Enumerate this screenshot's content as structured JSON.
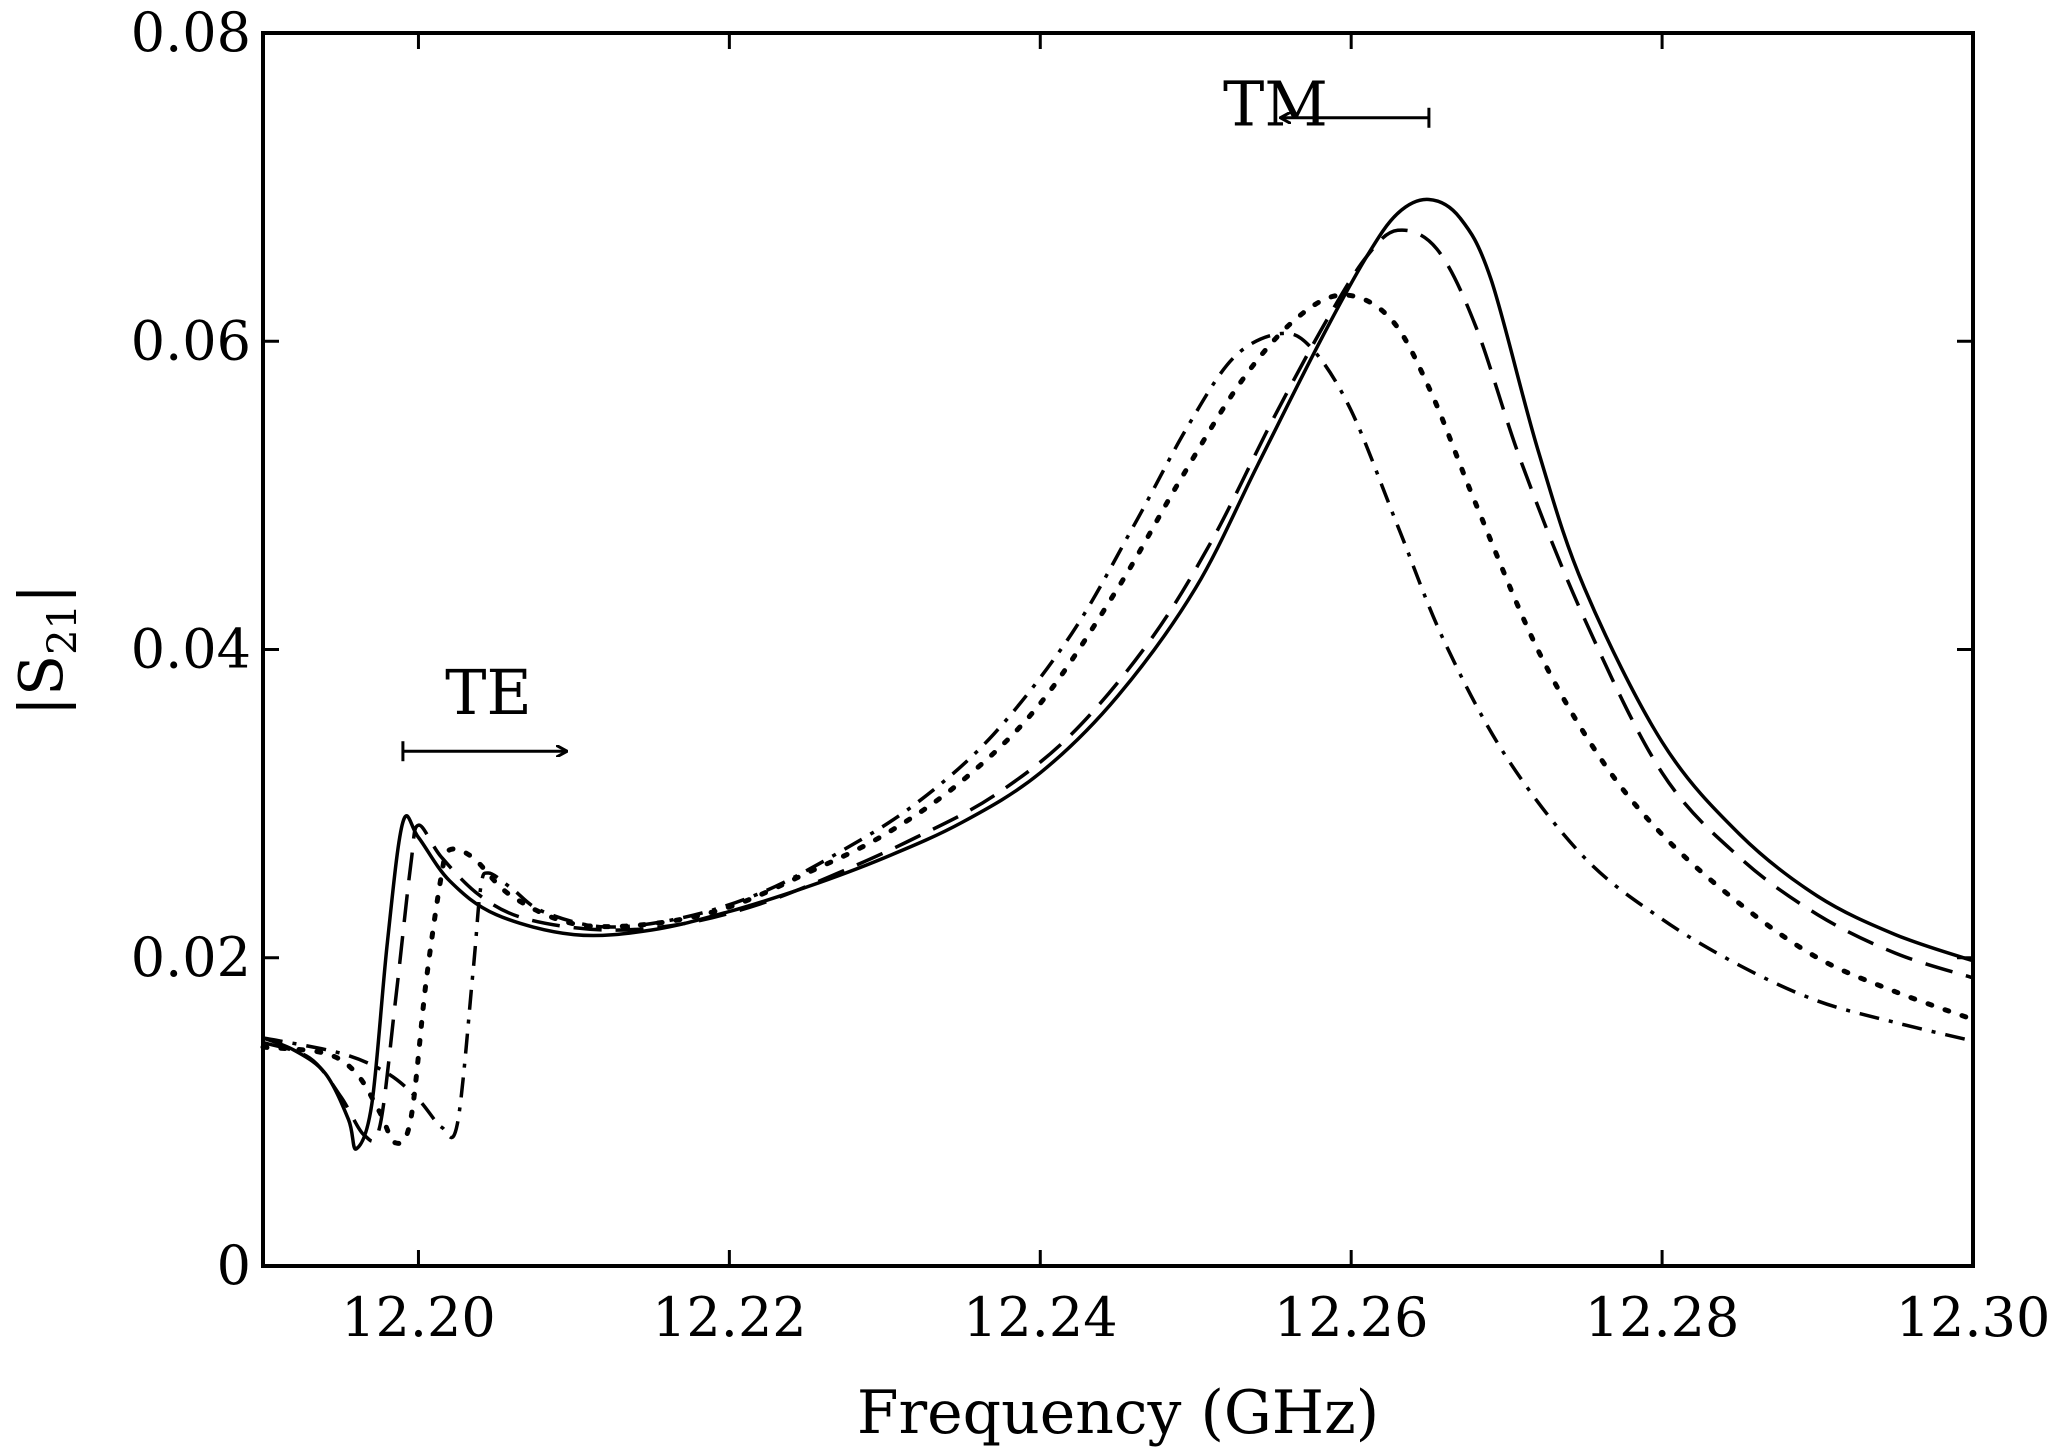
{
  "chart_data": {
    "type": "line",
    "title": "",
    "xlabel": "Frequency (GHz)",
    "ylabel": "|S21|",
    "ylabel_parts": {
      "pre": "|S",
      "sub": "21",
      "post": "|"
    },
    "xlim": [
      12.19,
      12.3
    ],
    "ylim": [
      0,
      0.08
    ],
    "xticks": [
      12.2,
      12.22,
      12.24,
      12.26,
      12.28,
      12.3
    ],
    "xtick_labels": [
      "12.20",
      "12.22",
      "12.24",
      "12.26",
      "12.28",
      "12.30"
    ],
    "yticks": [
      0,
      0.02,
      0.04,
      0.06,
      0.08
    ],
    "ytick_labels": [
      "0",
      "0.02",
      "0.04",
      "0.06",
      "0.08"
    ],
    "grid": false,
    "legend": null,
    "series": [
      {
        "name": "solid",
        "style": "solid",
        "color": "#000000",
        "points": [
          [
            12.19,
            0.0148
          ],
          [
            12.192,
            0.014
          ],
          [
            12.194,
            0.0125
          ],
          [
            12.1955,
            0.0095
          ],
          [
            12.196,
            0.0076
          ],
          [
            12.197,
            0.0105
          ],
          [
            12.198,
            0.021
          ],
          [
            12.199,
            0.0288
          ],
          [
            12.2,
            0.0278
          ],
          [
            12.202,
            0.025
          ],
          [
            12.205,
            0.0228
          ],
          [
            12.21,
            0.0215
          ],
          [
            12.215,
            0.0218
          ],
          [
            12.22,
            0.023
          ],
          [
            12.225,
            0.0246
          ],
          [
            12.23,
            0.0265
          ],
          [
            12.235,
            0.0288
          ],
          [
            12.24,
            0.032
          ],
          [
            12.245,
            0.037
          ],
          [
            12.25,
            0.044
          ],
          [
            12.254,
            0.052
          ],
          [
            12.258,
            0.06
          ],
          [
            12.261,
            0.0655
          ],
          [
            12.263,
            0.0683
          ],
          [
            12.265,
            0.0692
          ],
          [
            12.267,
            0.068
          ],
          [
            12.269,
            0.064
          ],
          [
            12.272,
            0.053
          ],
          [
            12.275,
            0.044
          ],
          [
            12.28,
            0.034
          ],
          [
            12.285,
            0.028
          ],
          [
            12.29,
            0.024
          ],
          [
            12.295,
            0.0215
          ],
          [
            12.3,
            0.0198
          ]
        ]
      },
      {
        "name": "dashed",
        "style": "dashed",
        "color": "#000000",
        "points": [
          [
            12.19,
            0.0145
          ],
          [
            12.193,
            0.0135
          ],
          [
            12.195,
            0.011
          ],
          [
            12.1965,
            0.0085
          ],
          [
            12.1975,
            0.009
          ],
          [
            12.1985,
            0.017
          ],
          [
            12.1995,
            0.026
          ],
          [
            12.2,
            0.0286
          ],
          [
            12.2015,
            0.0265
          ],
          [
            12.204,
            0.024
          ],
          [
            12.207,
            0.0225
          ],
          [
            12.212,
            0.0218
          ],
          [
            12.217,
            0.0222
          ],
          [
            12.222,
            0.0235
          ],
          [
            12.227,
            0.0255
          ],
          [
            12.232,
            0.0278
          ],
          [
            12.237,
            0.0305
          ],
          [
            12.242,
            0.0345
          ],
          [
            12.247,
            0.0405
          ],
          [
            12.251,
            0.047
          ],
          [
            12.255,
            0.055
          ],
          [
            12.2585,
            0.0615
          ],
          [
            12.261,
            0.0655
          ],
          [
            12.263,
            0.0672
          ],
          [
            12.2655,
            0.066
          ],
          [
            12.268,
            0.061
          ],
          [
            12.271,
            0.052
          ],
          [
            12.275,
            0.042
          ],
          [
            12.28,
            0.032
          ],
          [
            12.285,
            0.0265
          ],
          [
            12.29,
            0.0228
          ],
          [
            12.295,
            0.0203
          ],
          [
            12.3,
            0.0187
          ]
        ]
      },
      {
        "name": "dotted",
        "style": "dotted",
        "color": "#000000",
        "points": [
          [
            12.19,
            0.0142
          ],
          [
            12.194,
            0.0138
          ],
          [
            12.196,
            0.0125
          ],
          [
            12.1975,
            0.01
          ],
          [
            12.1985,
            0.008
          ],
          [
            12.1995,
            0.0095
          ],
          [
            12.2005,
            0.0185
          ],
          [
            12.2015,
            0.0255
          ],
          [
            12.202,
            0.027
          ],
          [
            12.2035,
            0.0265
          ],
          [
            12.206,
            0.024
          ],
          [
            12.21,
            0.0222
          ],
          [
            12.215,
            0.0222
          ],
          [
            12.22,
            0.0233
          ],
          [
            12.225,
            0.0255
          ],
          [
            12.23,
            0.028
          ],
          [
            12.235,
            0.0315
          ],
          [
            12.24,
            0.0365
          ],
          [
            12.245,
            0.044
          ],
          [
            12.249,
            0.051
          ],
          [
            12.253,
            0.0575
          ],
          [
            12.2565,
            0.0615
          ],
          [
            12.2595,
            0.063
          ],
          [
            12.2625,
            0.0615
          ],
          [
            12.265,
            0.057
          ],
          [
            12.268,
            0.0495
          ],
          [
            12.272,
            0.04
          ],
          [
            12.276,
            0.033
          ],
          [
            12.28,
            0.028
          ],
          [
            12.285,
            0.0235
          ],
          [
            12.29,
            0.02
          ],
          [
            12.295,
            0.0178
          ],
          [
            12.3,
            0.016
          ]
        ]
      },
      {
        "name": "dash-dot",
        "style": "dashdot",
        "color": "#000000",
        "points": [
          [
            12.19,
            0.0148
          ],
          [
            12.195,
            0.0138
          ],
          [
            12.198,
            0.0125
          ],
          [
            12.2,
            0.0108
          ],
          [
            12.2015,
            0.009
          ],
          [
            12.2025,
            0.0092
          ],
          [
            12.2035,
            0.019
          ],
          [
            12.204,
            0.0245
          ],
          [
            12.2045,
            0.0255
          ],
          [
            12.206,
            0.0245
          ],
          [
            12.208,
            0.023
          ],
          [
            12.212,
            0.022
          ],
          [
            12.217,
            0.0226
          ],
          [
            12.222,
            0.0242
          ],
          [
            12.227,
            0.0268
          ],
          [
            12.232,
            0.03
          ],
          [
            12.237,
            0.0345
          ],
          [
            12.242,
            0.041
          ],
          [
            12.246,
            0.048
          ],
          [
            12.2495,
            0.0545
          ],
          [
            12.2525,
            0.059
          ],
          [
            12.2555,
            0.0605
          ],
          [
            12.2575,
            0.0595
          ],
          [
            12.26,
            0.0555
          ],
          [
            12.263,
            0.048
          ],
          [
            12.266,
            0.0405
          ],
          [
            12.27,
            0.033
          ],
          [
            12.275,
            0.0265
          ],
          [
            12.28,
            0.0225
          ],
          [
            12.285,
            0.0195
          ],
          [
            12.29,
            0.0172
          ],
          [
            12.295,
            0.0158
          ],
          [
            12.3,
            0.0146
          ]
        ]
      }
    ],
    "annotations": [
      {
        "text": "TM",
        "text_pos": [
          12.2585,
          0.074
        ],
        "arrow_from": [
          12.265,
          0.0745
        ],
        "arrow_to": [
          12.2555,
          0.0745
        ],
        "anchor": "end"
      },
      {
        "text": "TE",
        "text_pos": [
          12.2045,
          0.0358
        ],
        "arrow_from": [
          12.199,
          0.0334
        ],
        "arrow_to": [
          12.2095,
          0.0334
        ],
        "anchor": "middle"
      }
    ]
  }
}
